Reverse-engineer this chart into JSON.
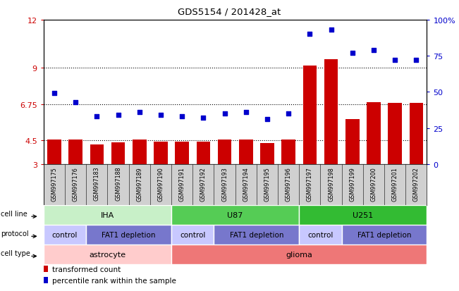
{
  "title": "GDS5154 / 201428_at",
  "samples": [
    "GSM997175",
    "GSM997176",
    "GSM997183",
    "GSM997188",
    "GSM997189",
    "GSM997190",
    "GSM997191",
    "GSM997192",
    "GSM997193",
    "GSM997194",
    "GSM997195",
    "GSM997196",
    "GSM997197",
    "GSM997198",
    "GSM997199",
    "GSM997200",
    "GSM997201",
    "GSM997202"
  ],
  "bar_values": [
    4.55,
    4.52,
    4.22,
    4.35,
    4.52,
    4.42,
    4.42,
    4.42,
    4.52,
    4.52,
    4.32,
    4.55,
    9.15,
    9.55,
    5.8,
    6.85,
    6.82,
    6.82
  ],
  "dot_values": [
    49,
    43,
    33,
    34,
    36,
    34,
    33,
    32,
    35,
    36,
    31,
    35,
    90,
    93,
    77,
    79,
    72,
    72
  ],
  "bar_color": "#cc0000",
  "dot_color": "#0000cc",
  "ylim_left": [
    3,
    12
  ],
  "ylim_right": [
    0,
    100
  ],
  "yticks_left": [
    3,
    4.5,
    6.75,
    9,
    12
  ],
  "yticks_right": [
    0,
    25,
    50,
    75,
    100
  ],
  "ytick_labels_right": [
    "0",
    "25",
    "50",
    "75",
    "100%"
  ],
  "hlines": [
    4.5,
    6.75,
    9
  ],
  "cell_line_groups": [
    {
      "label": "IHA",
      "start": 0,
      "end": 6,
      "color": "#c8f0c8"
    },
    {
      "label": "U87",
      "start": 6,
      "end": 12,
      "color": "#55cc55"
    },
    {
      "label": "U251",
      "start": 12,
      "end": 18,
      "color": "#33bb33"
    }
  ],
  "protocol_groups": [
    {
      "label": "control",
      "start": 0,
      "end": 2,
      "color": "#c8c8ff"
    },
    {
      "label": "FAT1 depletion",
      "start": 2,
      "end": 6,
      "color": "#7777cc"
    },
    {
      "label": "control",
      "start": 6,
      "end": 8,
      "color": "#c8c8ff"
    },
    {
      "label": "FAT1 depletion",
      "start": 8,
      "end": 12,
      "color": "#7777cc"
    },
    {
      "label": "control",
      "start": 12,
      "end": 14,
      "color": "#c8c8ff"
    },
    {
      "label": "FAT1 depletion",
      "start": 14,
      "end": 18,
      "color": "#7777cc"
    }
  ],
  "cell_type_groups": [
    {
      "label": "astrocyte",
      "start": 0,
      "end": 6,
      "color": "#ffcccc"
    },
    {
      "label": "glioma",
      "start": 6,
      "end": 18,
      "color": "#ee7777"
    }
  ],
  "row_labels": [
    "cell line",
    "protocol",
    "cell type"
  ],
  "legend_items": [
    {
      "color": "#cc0000",
      "label": "transformed count"
    },
    {
      "color": "#0000cc",
      "label": "percentile rank within the sample"
    }
  ],
  "left_color": "#cc0000",
  "right_color": "#0000cc",
  "xlabel_bg": "#d0d0d0"
}
